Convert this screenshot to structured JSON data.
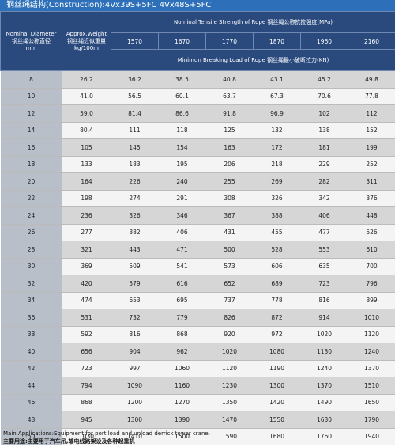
{
  "header": {
    "title": "钢丝绳结构(Construction):4Vx39S+5FC 4Vx48S+5FC"
  },
  "table": {
    "col_diameter": [
      "Nominal Diameter",
      "钢丝绳公称直径",
      "mm"
    ],
    "col_weight": [
      "Approx.Weight",
      "钢丝绳近似重量",
      "kg/100m"
    ],
    "tensile_title": "Nominal Tensile Strength of Rope  钢丝绳公称抗拉强度(MPa)",
    "grades": [
      "1570",
      "1670",
      "1770",
      "1870",
      "1960",
      "2160"
    ],
    "breaking_title": "Minimun Breaking Load of Rope  钢丝绳最小破断拉力(KN)",
    "rows": [
      [
        "8",
        "26.2",
        "36.2",
        "38.5",
        "40.8",
        "43.1",
        "45.2",
        "49.8"
      ],
      [
        "10",
        "41.0",
        "56.5",
        "60.1",
        "63.7",
        "67.3",
        "70.6",
        "77.8"
      ],
      [
        "12",
        "59.0",
        "81.4",
        "86.6",
        "91.8",
        "96.9",
        "102",
        "112"
      ],
      [
        "14",
        "80.4",
        "111",
        "118",
        "125",
        "132",
        "138",
        "152"
      ],
      [
        "16",
        "105",
        "145",
        "154",
        "163",
        "172",
        "181",
        "199"
      ],
      [
        "18",
        "133",
        "183",
        "195",
        "206",
        "218",
        "229",
        "252"
      ],
      [
        "20",
        "164",
        "226",
        "240",
        "255",
        "269",
        "282",
        "311"
      ],
      [
        "22",
        "198",
        "274",
        "291",
        "308",
        "326",
        "342",
        "376"
      ],
      [
        "24",
        "236",
        "326",
        "346",
        "367",
        "388",
        "406",
        "448"
      ],
      [
        "26",
        "277",
        "382",
        "406",
        "431",
        "455",
        "477",
        "526"
      ],
      [
        "28",
        "321",
        "443",
        "471",
        "500",
        "528",
        "553",
        "610"
      ],
      [
        "30",
        "369",
        "509",
        "541",
        "573",
        "606",
        "635",
        "700"
      ],
      [
        "32",
        "420",
        "579",
        "616",
        "652",
        "689",
        "723",
        "796"
      ],
      [
        "34",
        "474",
        "653",
        "695",
        "737",
        "778",
        "816",
        "899"
      ],
      [
        "36",
        "531",
        "732",
        "779",
        "826",
        "872",
        "914",
        "1010"
      ],
      [
        "38",
        "592",
        "816",
        "868",
        "920",
        "972",
        "1020",
        "1120"
      ],
      [
        "40",
        "656",
        "904",
        "962",
        "1020",
        "1080",
        "1130",
        "1240"
      ],
      [
        "42",
        "723",
        "997",
        "1060",
        "1120",
        "1190",
        "1240",
        "1370"
      ],
      [
        "44",
        "794",
        "1090",
        "1160",
        "1230",
        "1300",
        "1370",
        "1510"
      ],
      [
        "46",
        "868",
        "1200",
        "1270",
        "1350",
        "1420",
        "1490",
        "1650"
      ],
      [
        "48",
        "945",
        "1300",
        "1390",
        "1470",
        "1550",
        "1630",
        "1790"
      ],
      [
        "50",
        "1030",
        "1410",
        "1500",
        "1590",
        "1680",
        "1760",
        "1940"
      ]
    ]
  },
  "footer": {
    "en": "Main Applications:Equipment for port load and unload derrick tower crane.",
    "zh": "主要用途:主要用于汽车吊,输电线路架设及各种起重机"
  }
}
